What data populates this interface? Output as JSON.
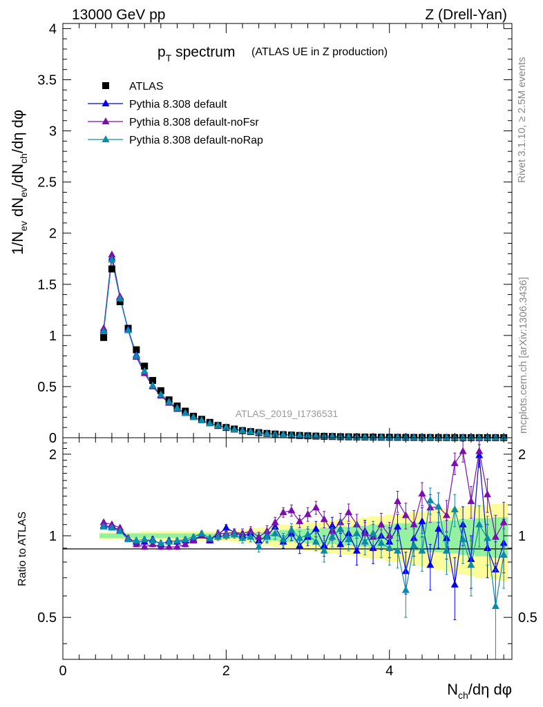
{
  "header": {
    "energy": "13000 GeV pp",
    "process": "Z (Drell-Yan)",
    "side_top": "Rivet 3.1.10, ≥ 2.5M events",
    "side_bottom": "mcplots.cern.ch [arXiv:1306.3436]"
  },
  "chart_data": [
    {
      "type": "scatter",
      "title_main": "p",
      "title_sub": "T",
      "title_tail": " spectrum",
      "title_note": "(ATLAS UE in Z production)",
      "analysis_label": "ATLAS_2019_I1736531",
      "xlim": [
        0,
        5.5
      ],
      "ylim": [
        0,
        4.05
      ],
      "y_ticks": [
        0,
        0.5,
        1,
        1.5,
        2,
        2.5,
        3,
        3.5,
        4
      ],
      "ylabel": "1/N_ev dN_ev/dN_ch/dη dφ",
      "x": [
        0.5,
        0.6,
        0.7,
        0.8,
        0.9,
        1.0,
        1.1,
        1.2,
        1.3,
        1.4,
        1.5,
        1.6,
        1.7,
        1.8,
        1.9,
        2.0,
        2.1,
        2.2,
        2.3,
        2.4,
        2.5,
        2.6,
        2.7,
        2.8,
        2.9,
        3.0,
        3.1,
        3.2,
        3.3,
        3.4,
        3.5,
        3.6,
        3.7,
        3.8,
        3.9,
        4.0,
        4.1,
        4.2,
        4.3,
        4.4,
        4.5,
        4.6,
        4.7,
        4.8,
        4.9,
        5.0,
        5.1,
        5.2,
        5.3,
        5.4
      ],
      "series": [
        {
          "name": "ATLAS",
          "marker": "square",
          "color": "#000000",
          "values": [
            0.98,
            1.65,
            1.33,
            1.07,
            0.86,
            0.7,
            0.56,
            0.46,
            0.37,
            0.31,
            0.26,
            0.21,
            0.18,
            0.15,
            0.12,
            0.1,
            0.085,
            0.07,
            0.06,
            0.05,
            0.042,
            0.036,
            0.03,
            0.026,
            0.022,
            0.019,
            0.016,
            0.014,
            0.012,
            0.01,
            0.009,
            0.008,
            0.007,
            0.006,
            0.005,
            0.0045,
            0.004,
            0.0035,
            0.003,
            0.0027,
            0.0024,
            0.0021,
            0.0019,
            0.0017,
            0.0015,
            0.0013,
            0.0012,
            0.0011,
            0.001,
            0.0009
          ]
        },
        {
          "name": "Pythia 8.308 default",
          "marker": "triangle",
          "color": "#0000ee",
          "values": [
            1.05,
            1.76,
            1.37,
            1.06,
            0.81,
            0.65,
            0.51,
            0.42,
            0.35,
            0.29,
            0.24,
            0.2,
            0.17,
            0.14,
            0.12,
            0.1,
            0.08,
            0.07,
            0.06,
            0.05,
            0.04,
            0.035,
            0.03,
            0.026,
            0.022,
            0.019,
            0.016,
            0.014,
            0.012,
            0.01,
            0.009,
            0.008,
            0.007,
            0.006,
            0.005,
            0.0045,
            0.004,
            0.0035,
            0.003,
            0.0027,
            0.0024,
            0.0021,
            0.0019,
            0.0017,
            0.0015,
            0.0013,
            0.0012,
            0.0011,
            0.001,
            0.0009
          ]
        },
        {
          "name": "Pythia 8.308 default-noFsr",
          "marker": "triangle",
          "color": "#7b0fae",
          "values": [
            1.07,
            1.79,
            1.38,
            1.05,
            0.79,
            0.63,
            0.5,
            0.41,
            0.34,
            0.28,
            0.24,
            0.2,
            0.17,
            0.14,
            0.12,
            0.1,
            0.08,
            0.07,
            0.06,
            0.05,
            0.04,
            0.035,
            0.03,
            0.026,
            0.022,
            0.019,
            0.016,
            0.014,
            0.012,
            0.01,
            0.009,
            0.008,
            0.007,
            0.006,
            0.005,
            0.0045,
            0.004,
            0.0035,
            0.003,
            0.0027,
            0.0024,
            0.0021,
            0.0019,
            0.0017,
            0.0015,
            0.0013,
            0.0012,
            0.0011,
            0.001,
            0.0009
          ]
        },
        {
          "name": "Pythia 8.308 default-noRap",
          "marker": "triangle",
          "color": "#0a8ca8",
          "values": [
            1.04,
            1.74,
            1.36,
            1.05,
            0.8,
            0.65,
            0.51,
            0.42,
            0.35,
            0.29,
            0.24,
            0.2,
            0.17,
            0.14,
            0.12,
            0.1,
            0.08,
            0.07,
            0.06,
            0.05,
            0.04,
            0.035,
            0.03,
            0.026,
            0.022,
            0.019,
            0.016,
            0.014,
            0.012,
            0.01,
            0.009,
            0.008,
            0.007,
            0.006,
            0.005,
            0.0045,
            0.004,
            0.0035,
            0.003,
            0.0027,
            0.0024,
            0.0021,
            0.0019,
            0.0017,
            0.0015,
            0.0013,
            0.0012,
            0.0011,
            0.001,
            0.0009
          ]
        }
      ]
    },
    {
      "type": "scatter",
      "xlim": [
        0,
        5.5
      ],
      "ylim": [
        0.35,
        2.3
      ],
      "y_ticks": [
        0.5,
        1,
        2
      ],
      "x_ticks": [
        0,
        2,
        4
      ],
      "ylabel": "Ratio to ATLAS",
      "xlabel": "N_ch/dη dφ",
      "x": [
        0.5,
        0.6,
        0.7,
        0.8,
        0.9,
        1.0,
        1.1,
        1.2,
        1.3,
        1.4,
        1.5,
        1.6,
        1.7,
        1.8,
        1.9,
        2.0,
        2.1,
        2.2,
        2.3,
        2.4,
        2.5,
        2.6,
        2.7,
        2.8,
        2.9,
        3.0,
        3.1,
        3.2,
        3.3,
        3.4,
        3.5,
        3.6,
        3.7,
        3.8,
        3.9,
        4.0,
        4.1,
        4.2,
        4.3,
        4.4,
        4.5,
        4.6,
        4.7,
        4.8,
        4.9,
        5.0,
        5.1,
        5.2,
        5.3,
        5.4
      ],
      "band_stat": [
        0.02,
        0.02,
        0.02,
        0.02,
        0.02,
        0.02,
        0.02,
        0.02,
        0.02,
        0.02,
        0.02,
        0.02,
        0.02,
        0.02,
        0.02,
        0.02,
        0.02,
        0.03,
        0.03,
        0.03,
        0.04,
        0.04,
        0.05,
        0.05,
        0.06,
        0.06,
        0.06,
        0.07,
        0.07,
        0.08,
        0.08,
        0.09,
        0.09,
        0.1,
        0.1,
        0.1,
        0.11,
        0.11,
        0.12,
        0.12,
        0.13,
        0.13,
        0.14,
        0.14,
        0.15,
        0.15,
        0.16,
        0.16,
        0.17,
        0.17
      ],
      "band_total": [
        0.03,
        0.03,
        0.03,
        0.03,
        0.03,
        0.04,
        0.04,
        0.04,
        0.04,
        0.04,
        0.04,
        0.04,
        0.04,
        0.04,
        0.04,
        0.04,
        0.05,
        0.05,
        0.06,
        0.07,
        0.08,
        0.09,
        0.1,
        0.1,
        0.11,
        0.12,
        0.12,
        0.13,
        0.14,
        0.15,
        0.15,
        0.16,
        0.17,
        0.18,
        0.18,
        0.2,
        0.2,
        0.21,
        0.22,
        0.23,
        0.24,
        0.25,
        0.26,
        0.27,
        0.28,
        0.29,
        0.3,
        0.3,
        0.31,
        0.32
      ],
      "series": [
        {
          "name": "Pythia 8.308 default",
          "color": "#0000ee",
          "values": [
            1.09,
            1.08,
            1.05,
            0.98,
            0.95,
            0.95,
            0.97,
            0.93,
            0.96,
            0.95,
            0.96,
            0.97,
            1.0,
            0.96,
            1.01,
            1.07,
            1.03,
            1.0,
            1.02,
            0.96,
            1.0,
            1.08,
            0.95,
            1.02,
            0.92,
            0.99,
            1.06,
            0.92,
            1.09,
            0.93,
            1.02,
            0.88,
            1.04,
            0.9,
            1.0,
            0.95,
            1.08,
            0.74,
            0.98,
            1.13,
            0.78,
            1.06,
            0.98,
            0.66,
            1.1,
            0.82,
            1.98,
            0.9,
            0.75,
            0.94
          ],
          "errors": [
            0.02,
            0.02,
            0.02,
            0.02,
            0.02,
            0.02,
            0.02,
            0.02,
            0.02,
            0.02,
            0.02,
            0.02,
            0.02,
            0.02,
            0.03,
            0.03,
            0.03,
            0.04,
            0.04,
            0.04,
            0.05,
            0.05,
            0.05,
            0.06,
            0.06,
            0.07,
            0.07,
            0.08,
            0.08,
            0.09,
            0.09,
            0.1,
            0.1,
            0.11,
            0.11,
            0.12,
            0.12,
            0.13,
            0.14,
            0.14,
            0.15,
            0.16,
            0.16,
            0.17,
            0.18,
            0.18,
            0.19,
            0.2,
            0.2,
            0.21
          ]
        },
        {
          "name": "Pythia 8.308 default-noFsr",
          "color": "#7b0fae",
          "values": [
            1.12,
            1.1,
            1.07,
            0.98,
            0.93,
            0.91,
            0.93,
            0.91,
            0.91,
            0.91,
            0.93,
            0.96,
            1.0,
            0.97,
            1.02,
            1.02,
            1.03,
            1.02,
            1.04,
            0.99,
            1.04,
            1.12,
            1.22,
            1.24,
            1.13,
            1.2,
            1.27,
            1.15,
            1.04,
            1.12,
            1.22,
            1.1,
            1.02,
            0.99,
            1.1,
            1.0,
            1.34,
            1.19,
            1.1,
            1.43,
            1.27,
            1.28,
            1.19,
            1.85,
            2.05,
            1.34,
            2.05,
            1.42,
            0.99,
            1.12
          ],
          "errors": [
            0.02,
            0.02,
            0.02,
            0.02,
            0.02,
            0.02,
            0.02,
            0.02,
            0.02,
            0.02,
            0.02,
            0.02,
            0.02,
            0.02,
            0.03,
            0.03,
            0.03,
            0.04,
            0.04,
            0.04,
            0.05,
            0.05,
            0.05,
            0.06,
            0.06,
            0.07,
            0.07,
            0.08,
            0.08,
            0.09,
            0.09,
            0.1,
            0.1,
            0.11,
            0.11,
            0.12,
            0.12,
            0.13,
            0.14,
            0.14,
            0.15,
            0.16,
            0.16,
            0.17,
            0.18,
            0.18,
            0.19,
            0.2,
            0.2,
            0.21
          ]
        },
        {
          "name": "Pythia 8.308 default-noRap",
          "color": "#0a8ca8",
          "values": [
            1.08,
            1.07,
            1.04,
            0.97,
            0.96,
            0.97,
            0.96,
            0.94,
            0.95,
            0.96,
            0.97,
            0.99,
            1.02,
            0.98,
            0.99,
            1.0,
            1.01,
            0.98,
            0.99,
            0.91,
            0.99,
            1.02,
            0.97,
            1.05,
            0.98,
            1.01,
            0.95,
            0.88,
            0.99,
            1.06,
            0.97,
            1.02,
            0.95,
            1.02,
            0.94,
            0.9,
            0.88,
            0.63,
            0.92,
            0.88,
            1.35,
            1.28,
            0.88,
            1.25,
            0.97,
            0.78,
            1.1,
            0.98,
            0.55,
            0.85
          ],
          "errors": [
            0.02,
            0.02,
            0.02,
            0.02,
            0.02,
            0.02,
            0.02,
            0.02,
            0.02,
            0.02,
            0.02,
            0.02,
            0.02,
            0.02,
            0.03,
            0.03,
            0.03,
            0.04,
            0.04,
            0.04,
            0.05,
            0.05,
            0.05,
            0.06,
            0.06,
            0.07,
            0.07,
            0.08,
            0.08,
            0.09,
            0.09,
            0.1,
            0.1,
            0.11,
            0.11,
            0.12,
            0.12,
            0.13,
            0.14,
            0.14,
            0.15,
            0.16,
            0.16,
            0.17,
            0.18,
            0.18,
            0.19,
            0.2,
            0.2,
            0.21
          ]
        }
      ]
    }
  ]
}
